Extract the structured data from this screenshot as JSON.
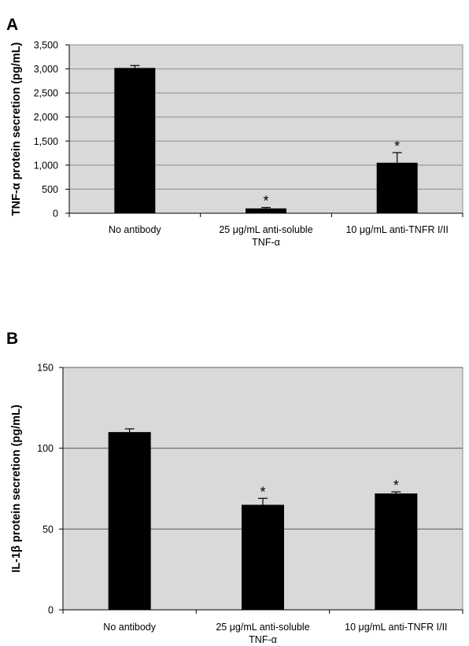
{
  "chart_data": [
    {
      "panel": "A",
      "type": "bar",
      "ylabel": "TNF-α protein secretion (pg/mL)",
      "categories": [
        [
          "No antibody"
        ],
        [
          "25 μg/mL anti-soluble",
          "TNF-α"
        ],
        [
          "10 μg/mL anti-TNFR I/II"
        ]
      ],
      "values": [
        3020,
        100,
        1050
      ],
      "errors": [
        50,
        20,
        210
      ],
      "significance": [
        "",
        "*",
        "*"
      ],
      "ylim": [
        0,
        3500
      ],
      "yticks": [
        0,
        500,
        1000,
        1500,
        2000,
        2500,
        3000,
        3500
      ],
      "ytick_labels": [
        "0",
        "500",
        "1,000",
        "1,500",
        "2,000",
        "2,500",
        "3,000",
        "3,500"
      ],
      "grid": true,
      "colors": {
        "bar": "#000000",
        "plot_bg": "#d9d9d9",
        "grid": "#8c8c8c"
      }
    },
    {
      "panel": "B",
      "type": "bar",
      "ylabel": "IL-1β protein secretion (pg/mL)",
      "categories": [
        [
          "No antibody"
        ],
        [
          "25 μg/mL anti-soluble",
          "TNF-α"
        ],
        [
          "10 μg/mL anti-TNFR I/II"
        ]
      ],
      "values": [
        110,
        65,
        72
      ],
      "errors": [
        2,
        4,
        1
      ],
      "significance": [
        "",
        "*",
        "*"
      ],
      "ylim": [
        0,
        150
      ],
      "yticks": [
        0,
        50,
        100,
        150
      ],
      "ytick_labels": [
        "0",
        "50",
        "100",
        "150"
      ],
      "grid": true,
      "colors": {
        "bar": "#000000",
        "plot_bg": "#d9d9d9",
        "grid": "#595959"
      }
    }
  ]
}
